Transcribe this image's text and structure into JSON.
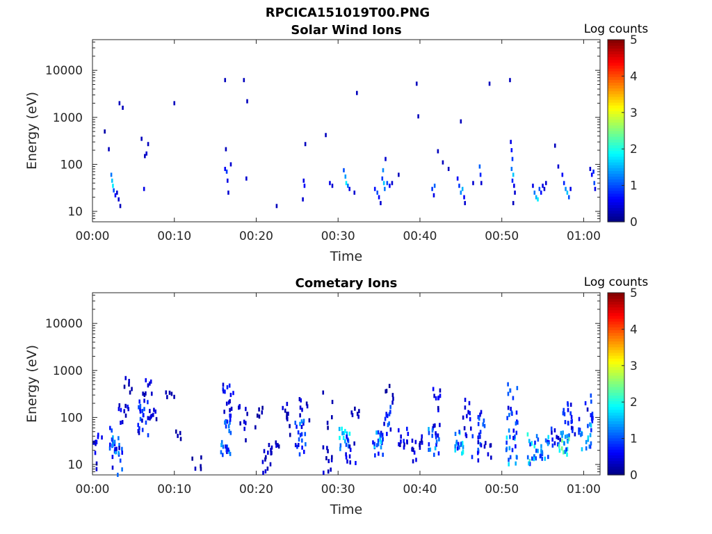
{
  "figure": {
    "title": "RPCICA151019T00.PNG"
  },
  "chart_data": [
    {
      "type": "heatmap",
      "title": "Solar Wind Ions",
      "xlabel": "Time",
      "ylabel": "Energy (eV)",
      "x_ticks": [
        "00:00",
        "00:10",
        "00:20",
        "00:30",
        "00:40",
        "00:50",
        "01:00"
      ],
      "x_tick_minutes": [
        0,
        10,
        20,
        30,
        40,
        50,
        60
      ],
      "xlim_minutes": [
        0,
        62
      ],
      "y_scale": "log",
      "ylim": [
        6,
        45000
      ],
      "y_ticks": [
        "10",
        "100",
        "1000",
        "10000"
      ],
      "y_tick_values": [
        10,
        100,
        1000,
        10000
      ],
      "colorbar": {
        "label": "Log counts",
        "ticks": [
          "0",
          "1",
          "2",
          "3",
          "4",
          "5"
        ],
        "range": [
          0,
          5
        ],
        "colormap": "jet"
      },
      "cells": [
        [
          1.5,
          500,
          0.2
        ],
        [
          2.0,
          210,
          0.3
        ],
        [
          2.3,
          60,
          1.2
        ],
        [
          2.4,
          45,
          1.6
        ],
        [
          2.5,
          35,
          1.8
        ],
        [
          2.6,
          28,
          1.0
        ],
        [
          2.8,
          22,
          0.6
        ],
        [
          3.0,
          25,
          0.4
        ],
        [
          3.2,
          18,
          0.4
        ],
        [
          3.4,
          13,
          0.3
        ],
        [
          3.3,
          2000,
          0.3
        ],
        [
          3.7,
          1600,
          0.3
        ],
        [
          6.0,
          350,
          0.3
        ],
        [
          6.4,
          150,
          0.3
        ],
        [
          6.8,
          270,
          0.3
        ],
        [
          6.6,
          170,
          0.4
        ],
        [
          6.3,
          30,
          0.5
        ],
        [
          10.0,
          2000,
          0.3
        ],
        [
          16.2,
          6200,
          0.3
        ],
        [
          16.3,
          210,
          0.3
        ],
        [
          16.2,
          80,
          0.6
        ],
        [
          16.4,
          70,
          0.9
        ],
        [
          16.5,
          45,
          0.5
        ],
        [
          16.6,
          25,
          0.4
        ],
        [
          16.9,
          100,
          0.4
        ],
        [
          18.5,
          6200,
          0.3
        ],
        [
          18.9,
          2200,
          0.3
        ],
        [
          18.8,
          50,
          0.4
        ],
        [
          22.5,
          13,
          0.3
        ],
        [
          25.8,
          45,
          0.5
        ],
        [
          25.9,
          35,
          0.6
        ],
        [
          25.7,
          18,
          0.4
        ],
        [
          26.0,
          270,
          0.3
        ],
        [
          28.5,
          420,
          0.3
        ],
        [
          29.0,
          40,
          0.5
        ],
        [
          29.3,
          35,
          0.4
        ],
        [
          30.7,
          75,
          1.0
        ],
        [
          30.9,
          55,
          1.4
        ],
        [
          31.0,
          40,
          1.8
        ],
        [
          31.2,
          35,
          1.2
        ],
        [
          31.4,
          30,
          0.5
        ],
        [
          32.0,
          25,
          0.4
        ],
        [
          32.3,
          3300,
          0.3
        ],
        [
          34.5,
          30,
          0.7
        ],
        [
          34.8,
          25,
          1.0
        ],
        [
          35.0,
          20,
          0.6
        ],
        [
          35.2,
          15,
          0.4
        ],
        [
          35.4,
          50,
          0.9
        ],
        [
          35.5,
          75,
          1.3
        ],
        [
          35.6,
          40,
          1.6
        ],
        [
          35.7,
          30,
          1.2
        ],
        [
          35.8,
          130,
          0.4
        ],
        [
          36.0,
          40,
          1.0
        ],
        [
          36.3,
          35,
          0.6
        ],
        [
          36.6,
          40,
          0.4
        ],
        [
          37.4,
          60,
          0.3
        ],
        [
          39.6,
          5200,
          0.3
        ],
        [
          39.8,
          1050,
          0.3
        ],
        [
          41.5,
          30,
          0.9
        ],
        [
          41.7,
          22,
          0.5
        ],
        [
          41.8,
          35,
          1.1
        ],
        [
          42.2,
          190,
          0.3
        ],
        [
          42.8,
          110,
          0.3
        ],
        [
          43.5,
          80,
          0.3
        ],
        [
          44.6,
          50,
          0.6
        ],
        [
          44.8,
          35,
          0.9
        ],
        [
          45.0,
          25,
          1.3
        ],
        [
          45.2,
          30,
          1.5
        ],
        [
          45.4,
          20,
          0.6
        ],
        [
          45.5,
          15,
          0.4
        ],
        [
          45.0,
          820,
          0.3
        ],
        [
          46.5,
          40,
          0.4
        ],
        [
          47.3,
          90,
          1.1
        ],
        [
          47.4,
          60,
          0.8
        ],
        [
          47.5,
          40,
          0.4
        ],
        [
          48.5,
          5200,
          0.3
        ],
        [
          51.0,
          6200,
          0.3
        ],
        [
          51.1,
          300,
          0.5
        ],
        [
          51.2,
          200,
          0.7
        ],
        [
          51.3,
          130,
          0.9
        ],
        [
          51.2,
          80,
          1.2
        ],
        [
          51.4,
          60,
          1.6
        ],
        [
          51.3,
          45,
          0.8
        ],
        [
          51.5,
          35,
          0.5
        ],
        [
          51.6,
          25,
          0.4
        ],
        [
          51.4,
          15,
          0.3
        ],
        [
          53.8,
          35,
          0.5
        ],
        [
          54.0,
          25,
          1.2
        ],
        [
          54.2,
          20,
          1.5
        ],
        [
          54.4,
          18,
          1.8
        ],
        [
          54.6,
          30,
          1.0
        ],
        [
          54.8,
          25,
          0.7
        ],
        [
          55.0,
          35,
          0.5
        ],
        [
          55.2,
          30,
          0.4
        ],
        [
          55.4,
          40,
          0.4
        ],
        [
          56.5,
          250,
          0.3
        ],
        [
          56.9,
          90,
          0.4
        ],
        [
          57.4,
          60,
          0.6
        ],
        [
          57.6,
          40,
          0.8
        ],
        [
          57.8,
          30,
          1.3
        ],
        [
          58.0,
          25,
          1.6
        ],
        [
          58.2,
          20,
          1.0
        ],
        [
          58.4,
          30,
          0.5
        ],
        [
          60.8,
          80,
          0.4
        ],
        [
          61.0,
          60,
          0.6
        ],
        [
          61.2,
          70,
          0.8
        ],
        [
          61.3,
          40,
          1.0
        ],
        [
          61.4,
          30,
          0.5
        ]
      ]
    },
    {
      "type": "heatmap",
      "title": "Cometary Ions",
      "xlabel": "Time",
      "ylabel": "Energy (eV)",
      "x_ticks": [
        "00:00",
        "00:10",
        "00:20",
        "00:30",
        "00:40",
        "00:50",
        "01:00"
      ],
      "x_tick_minutes": [
        0,
        10,
        20,
        30,
        40,
        50,
        60
      ],
      "xlim_minutes": [
        0,
        62
      ],
      "y_scale": "log",
      "ylim": [
        6,
        45000
      ],
      "y_ticks": [
        "10",
        "100",
        "1000",
        "10000"
      ],
      "y_tick_values": [
        10,
        100,
        1000,
        10000
      ],
      "colorbar": {
        "label": "Log counts",
        "ticks": [
          "0",
          "1",
          "2",
          "3",
          "4",
          "5"
        ],
        "range": [
          0,
          5
        ],
        "colormap": "jet"
      },
      "clusters": [
        [
          0.1,
          6,
          60,
          0.6,
          8
        ],
        [
          0.6,
          25,
          45,
          0.7,
          6
        ],
        [
          2.7,
          15,
          60,
          1.6,
          18
        ],
        [
          3.1,
          6,
          25,
          1.2,
          10
        ],
        [
          3.8,
          60,
          200,
          0.7,
          10
        ],
        [
          4.3,
          200,
          700,
          0.4,
          6
        ],
        [
          6.2,
          40,
          250,
          1.1,
          22
        ],
        [
          6.6,
          300,
          700,
          0.6,
          8
        ],
        [
          7.2,
          70,
          150,
          0.5,
          8
        ],
        [
          9.5,
          250,
          350,
          0.3,
          5
        ],
        [
          10.3,
          30,
          110,
          0.3,
          4
        ],
        [
          12.7,
          8,
          18,
          0.4,
          5
        ],
        [
          16.3,
          15,
          120,
          1.5,
          24
        ],
        [
          16.6,
          120,
          500,
          0.9,
          14
        ],
        [
          18.3,
          30,
          220,
          0.5,
          10
        ],
        [
          20.3,
          60,
          200,
          0.3,
          6
        ],
        [
          21.3,
          6,
          40,
          0.6,
          12
        ],
        [
          22.3,
          15,
          30,
          0.5,
          6
        ],
        [
          23.5,
          40,
          200,
          0.5,
          10
        ],
        [
          25.4,
          15,
          100,
          1.4,
          20
        ],
        [
          25.9,
          80,
          250,
          0.5,
          8
        ],
        [
          28.6,
          6,
          30,
          0.6,
          10
        ],
        [
          28.8,
          60,
          400,
          0.3,
          5
        ],
        [
          30.8,
          20,
          60,
          2.0,
          18
        ],
        [
          31.6,
          10,
          35,
          0.8,
          10
        ],
        [
          32.3,
          100,
          300,
          0.4,
          6
        ],
        [
          34.9,
          15,
          50,
          2.0,
          20
        ],
        [
          35.8,
          40,
          200,
          1.2,
          16
        ],
        [
          36.2,
          200,
          500,
          0.4,
          6
        ],
        [
          38.0,
          20,
          60,
          0.8,
          10
        ],
        [
          38.6,
          20,
          35,
          0.6,
          6
        ],
        [
          39.7,
          10,
          50,
          0.6,
          10
        ],
        [
          41.7,
          15,
          60,
          1.6,
          18
        ],
        [
          42.2,
          60,
          500,
          0.7,
          12
        ],
        [
          44.8,
          15,
          50,
          2.0,
          18
        ],
        [
          45.6,
          40,
          250,
          0.8,
          12
        ],
        [
          47.0,
          12,
          50,
          1.2,
          14
        ],
        [
          47.3,
          60,
          150,
          1.2,
          8
        ],
        [
          48.2,
          12,
          35,
          0.5,
          6
        ],
        [
          51.2,
          10,
          60,
          1.8,
          20
        ],
        [
          51.3,
          60,
          600,
          1.2,
          16
        ],
        [
          53.8,
          10,
          45,
          2.3,
          20
        ],
        [
          55.2,
          12,
          40,
          1.8,
          16
        ],
        [
          56.5,
          25,
          60,
          1.0,
          10
        ],
        [
          57.6,
          15,
          50,
          2.5,
          22
        ],
        [
          57.9,
          60,
          250,
          1.0,
          12
        ],
        [
          59.0,
          30,
          100,
          1.0,
          10
        ],
        [
          60.3,
          20,
          80,
          1.8,
          16
        ],
        [
          60.6,
          80,
          300,
          1.0,
          10
        ]
      ]
    }
  ]
}
